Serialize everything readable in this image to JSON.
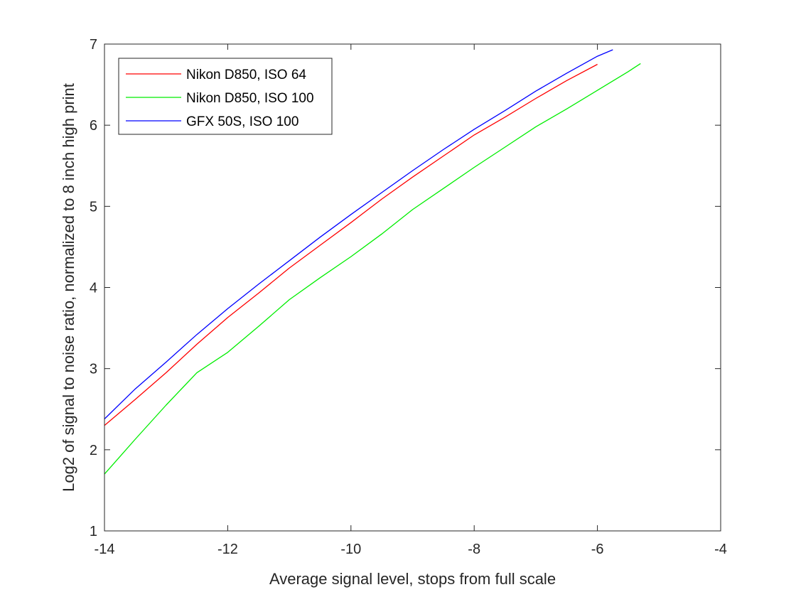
{
  "chart_data": {
    "type": "line",
    "xlabel": "Average signal level, stops from full scale",
    "ylabel": "Log2 of signal to noise ratio, normalized to 8 inch high print",
    "xlim": [
      -14,
      -4
    ],
    "ylim": [
      1,
      7
    ],
    "xticks": [
      -14,
      -12,
      -10,
      -8,
      -6,
      -4
    ],
    "yticks": [
      1,
      2,
      3,
      4,
      5,
      6,
      7
    ],
    "grid": false,
    "legend_position": "top-left",
    "series": [
      {
        "name": "Nikon D850, ISO 64",
        "color": "#ff0000",
        "x": [
          -14.0,
          -13.5,
          -13.0,
          -12.5,
          -12.0,
          -11.5,
          -11.0,
          -10.5,
          -10.0,
          -9.5,
          -9.0,
          -8.5,
          -8.0,
          -7.5,
          -7.0,
          -6.5,
          -6.0
        ],
        "y": [
          2.3,
          2.62,
          2.95,
          3.3,
          3.63,
          3.93,
          4.24,
          4.52,
          4.8,
          5.09,
          5.36,
          5.62,
          5.88,
          6.1,
          6.33,
          6.55,
          6.75
        ]
      },
      {
        "name": "Nikon D850, ISO 100",
        "color": "#00ee00",
        "x": [
          -14.0,
          -13.5,
          -13.0,
          -12.5,
          -12.0,
          -11.5,
          -11.0,
          -10.5,
          -10.0,
          -9.5,
          -9.0,
          -8.5,
          -8.0,
          -7.5,
          -7.0,
          -6.5,
          -6.0,
          -5.5,
          -5.3
        ],
        "y": [
          1.7,
          2.13,
          2.55,
          2.95,
          3.2,
          3.52,
          3.85,
          4.12,
          4.38,
          4.66,
          4.96,
          5.22,
          5.48,
          5.73,
          5.98,
          6.2,
          6.43,
          6.66,
          6.76
        ]
      },
      {
        "name": "GFX 50S, ISO 100",
        "color": "#0000ff",
        "x": [
          -14.0,
          -13.5,
          -13.0,
          -12.5,
          -12.0,
          -11.5,
          -11.0,
          -10.5,
          -10.0,
          -9.5,
          -9.0,
          -8.5,
          -8.0,
          -7.5,
          -7.0,
          -6.5,
          -6.0,
          -5.75
        ],
        "y": [
          2.38,
          2.75,
          3.08,
          3.42,
          3.74,
          4.04,
          4.33,
          4.62,
          4.9,
          5.17,
          5.44,
          5.7,
          5.95,
          6.18,
          6.42,
          6.64,
          6.85,
          6.93
        ]
      }
    ]
  }
}
